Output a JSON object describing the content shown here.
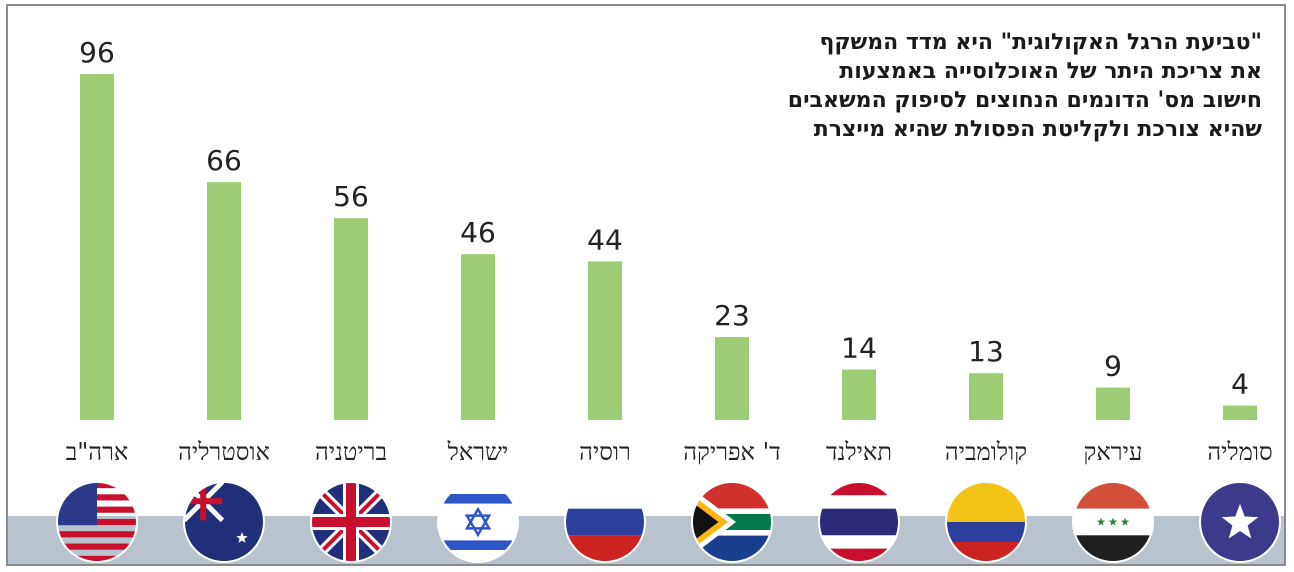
{
  "description": [
    "\"טביעת הרגל האקולוגית\" היא מדד המשקף",
    "את צריכת היתר של האוכלוסייה באמצעות",
    "חישוב מס' הדונמים הנחוצים לסיפוק המשאבים",
    "שהיא צורכת ולקליטת הפסולת שהיא מייצרת"
  ],
  "colors": {
    "bar": "#9ccc74",
    "band": "#b9c3cd",
    "flag_red": "#c8102e",
    "flag_blue": "#1f2f7a"
  },
  "chart_data": {
    "type": "bar",
    "categories": [
      "ארה\"ב",
      "אוסטרליה",
      "בריטניה",
      "ישראל",
      "רוסיה",
      "ד' אפריקה",
      "תאילנד",
      "קולומביה",
      "עיראק",
      "סומליה"
    ],
    "values": [
      96,
      66,
      56,
      46,
      44,
      23,
      14,
      13,
      9,
      4
    ],
    "ylim": [
      0,
      96
    ],
    "grid": false,
    "legend": "none",
    "flags": [
      "usa-flag",
      "australia-flag",
      "uk-flag",
      "israel-flag",
      "russia-flag",
      "south-africa-flag",
      "thailand-flag",
      "colombia-flag",
      "iraq-flag",
      "somalia-flag"
    ]
  }
}
